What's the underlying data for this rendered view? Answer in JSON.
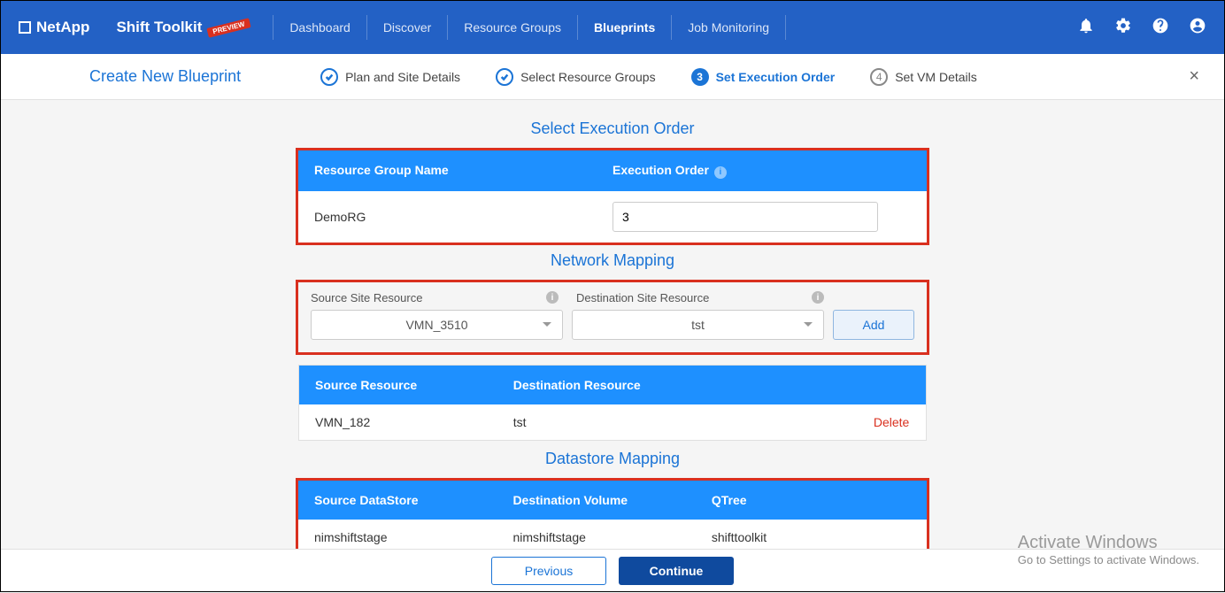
{
  "header": {
    "brand": "NetApp",
    "product": "Shift Toolkit",
    "preview_label": "PREVIEW",
    "nav": [
      "Dashboard",
      "Discover",
      "Resource Groups",
      "Blueprints",
      "Job Monitoring"
    ],
    "active_nav_index": 3
  },
  "sub": {
    "title": "Create New Blueprint",
    "steps": [
      {
        "label": "Plan and Site Details",
        "state": "done"
      },
      {
        "label": "Select Resource Groups",
        "state": "done"
      },
      {
        "label": "Set Execution Order",
        "state": "active",
        "num": "3"
      },
      {
        "label": "Set VM Details",
        "state": "pending",
        "num": "4"
      }
    ]
  },
  "exec": {
    "title": "Select Execution Order",
    "col_rg": "Resource Group Name",
    "col_order": "Execution Order",
    "rg_name": "DemoRG",
    "order_value": "3"
  },
  "net": {
    "title": "Network Mapping",
    "src_label": "Source Site Resource",
    "dst_label": "Destination Site Resource",
    "src_value": "VMN_3510",
    "dst_value": "tst",
    "add_label": "Add",
    "col_src": "Source Resource",
    "col_dst": "Destination Resource",
    "row_src": "VMN_182",
    "row_dst": "tst",
    "delete_label": "Delete"
  },
  "ds": {
    "title": "Datastore Mapping",
    "col_src": "Source DataStore",
    "col_dst": "Destination Volume",
    "col_q": "QTree",
    "row_src": "nimshiftstage",
    "row_dst": "nimshiftstage",
    "row_q": "shifttoolkit"
  },
  "footer": {
    "prev": "Previous",
    "cont": "Continue"
  },
  "watermark": {
    "title": "Activate Windows",
    "sub": "Go to Settings to activate Windows."
  }
}
